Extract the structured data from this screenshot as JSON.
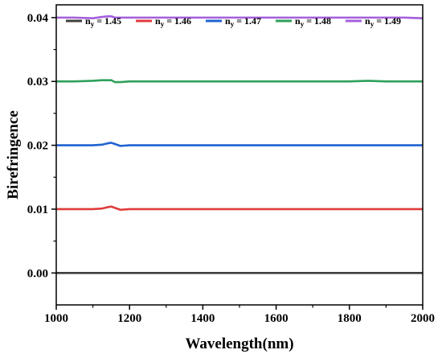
{
  "chart_data": {
    "type": "line",
    "title": "",
    "xlabel": "Wavelength(nm)",
    "ylabel": "Birefringence",
    "xlim": [
      1000,
      2000
    ],
    "ylim": [
      -0.005,
      0.042
    ],
    "xticks": [
      1000,
      1200,
      1400,
      1600,
      1800,
      2000
    ],
    "xtick_labels": [
      "1000",
      "1200",
      "1400",
      "1600",
      "1800",
      "2000"
    ],
    "yticks": [
      0.0,
      0.01,
      0.02,
      0.03,
      0.04
    ],
    "ytick_labels": [
      "0.00",
      "0.01",
      "0.02",
      "0.03",
      "0.04"
    ],
    "grid": false,
    "legend_placement": "top",
    "x": [
      1000,
      1050,
      1100,
      1125,
      1140,
      1150,
      1160,
      1175,
      1200,
      1300,
      1400,
      1500,
      1600,
      1700,
      1800,
      1850,
      1900,
      1950,
      2000
    ],
    "series": [
      {
        "name_base": "n",
        "name_sub": "y",
        "name_value": "= 1.45",
        "color": "#3f3f3f",
        "values": [
          0.0,
          0.0,
          0.0,
          0.0,
          0.0,
          0.0,
          0.0,
          0.0,
          0.0,
          0.0,
          0.0,
          0.0,
          0.0,
          0.0,
          0.0,
          0.0,
          0.0,
          0.0,
          0.0
        ]
      },
      {
        "name_base": "n",
        "name_sub": "y",
        "name_value": "= 1.46",
        "color": "#e03b3b",
        "values": [
          0.01,
          0.01,
          0.01,
          0.0101,
          0.0103,
          0.0104,
          0.0102,
          0.0099,
          0.01,
          0.01,
          0.01,
          0.01,
          0.01,
          0.01,
          0.01,
          0.01,
          0.01,
          0.01,
          0.01
        ]
      },
      {
        "name_base": "n",
        "name_sub": "y",
        "name_value": "= 1.47",
        "color": "#1f63d0",
        "values": [
          0.02,
          0.02,
          0.02,
          0.0201,
          0.0203,
          0.0204,
          0.0202,
          0.0199,
          0.02,
          0.02,
          0.02,
          0.02,
          0.02,
          0.02,
          0.02,
          0.02,
          0.02,
          0.02,
          0.02
        ]
      },
      {
        "name_base": "n",
        "name_sub": "y",
        "name_value": "= 1.48",
        "color": "#2ea05a",
        "values": [
          0.03,
          0.03,
          0.0301,
          0.0302,
          0.0302,
          0.0302,
          0.0299,
          0.0299,
          0.03,
          0.03,
          0.03,
          0.03,
          0.03,
          0.03,
          0.03,
          0.0301,
          0.03,
          0.03,
          0.03
        ]
      },
      {
        "name_base": "n",
        "name_sub": "y",
        "name_value": "= 1.49",
        "color": "#a45fdb",
        "values": [
          0.04,
          0.04,
          0.0399,
          0.0401,
          0.0402,
          0.0402,
          0.04,
          0.04,
          0.04,
          0.04,
          0.04,
          0.04,
          0.04,
          0.04,
          0.04,
          0.04,
          0.04,
          0.04,
          0.0399
        ]
      }
    ]
  }
}
